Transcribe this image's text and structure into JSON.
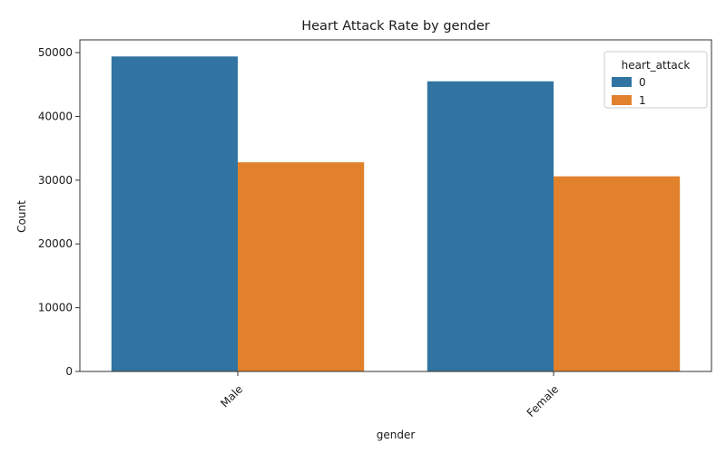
{
  "chart_data": {
    "type": "bar",
    "title": "Heart Attack Rate by gender",
    "xlabel": "gender",
    "ylabel": "Count",
    "categories": [
      "Male",
      "Female"
    ],
    "ylim": [
      0,
      52000
    ],
    "yticks": [
      0,
      10000,
      20000,
      30000,
      40000,
      50000
    ],
    "yticks_labels": [
      "0",
      "10000",
      "20000",
      "30000",
      "40000",
      "50000"
    ],
    "x_tick_rotation_deg": 45,
    "grid": false,
    "legend": {
      "title": "heart_attack",
      "placement": "top-right"
    },
    "series": [
      {
        "name": "0",
        "color": "#3274a1",
        "values": [
          49400,
          45500
        ]
      },
      {
        "name": "1",
        "color": "#e1812c",
        "values": [
          32800,
          30600
        ]
      }
    ]
  }
}
